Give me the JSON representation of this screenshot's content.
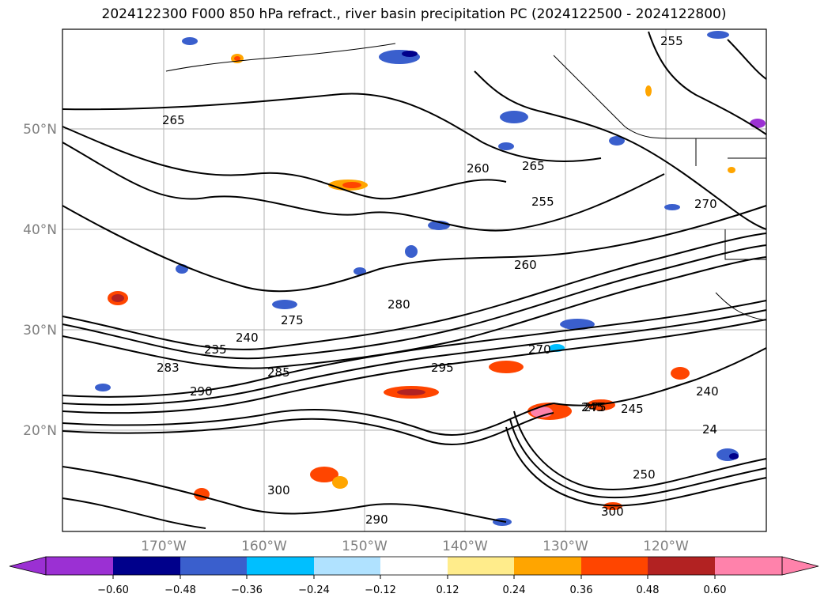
{
  "title": "2024122300 F000 850 hPa refract., river basin precipitation PC (2024122500 - 2024122800)",
  "map": {
    "lat_labels": [
      "50°N",
      "40°N",
      "30°N",
      "20°N"
    ],
    "lon_labels": [
      "170°W",
      "160°W",
      "150°W",
      "140°W",
      "130°W",
      "120°W"
    ],
    "contour_labels": [
      "265",
      "255",
      "260",
      "270",
      "265",
      "255",
      "280",
      "275",
      "240",
      "235",
      "283",
      "285",
      "290",
      "245",
      "240",
      "245",
      "270",
      "300",
      "295",
      "300",
      "290",
      "250",
      "24",
      "260",
      "275"
    ]
  },
  "colorbar": {
    "ticks": [
      "−0.60",
      "−0.48",
      "−0.36",
      "−0.24",
      "−0.12",
      "0.12",
      "0.24",
      "0.36",
      "0.48",
      "0.60"
    ],
    "colors": [
      "#9b30d3",
      "#00008b",
      "#3a5fcd",
      "#00bfff",
      "#b0e2ff",
      "#ffffff",
      "#ffec8b",
      "#ffa500",
      "#ff4500",
      "#b22222",
      "#ff82ab"
    ]
  }
}
